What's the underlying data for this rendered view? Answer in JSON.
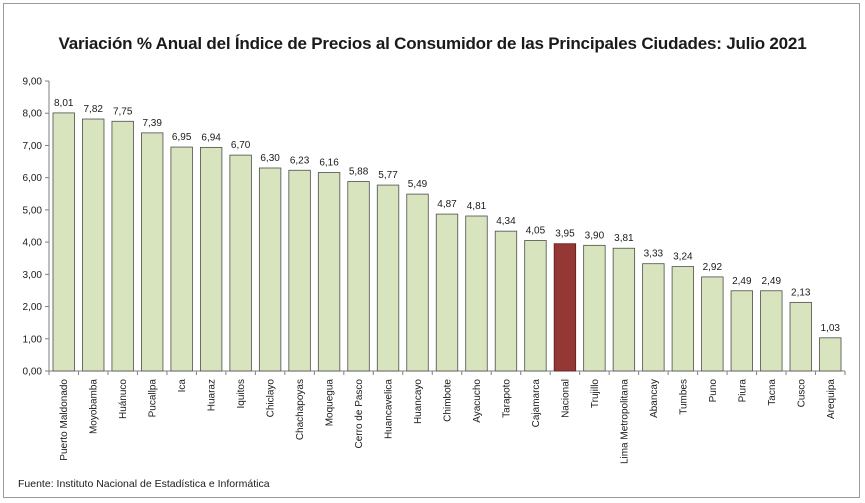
{
  "chart_data": {
    "type": "bar",
    "title": "Variación % Anual del Índice de Precios al Consumidor de las Principales Ciudades: Julio 2021",
    "xlabel": "",
    "ylabel": "",
    "ylim": [
      0,
      9
    ],
    "yticks": [
      "0,00",
      "1,00",
      "2,00",
      "3,00",
      "4,00",
      "5,00",
      "6,00",
      "7,00",
      "8,00",
      "9,00"
    ],
    "grid": false,
    "legend": "none",
    "categories": [
      "Puerto Maldonado",
      "Moyobamba",
      "Huánuco",
      "Pucallpa",
      "Ica",
      "Huaraz",
      "Iquitos",
      "Chiclayo",
      "Chachapoyas",
      "Moquegua",
      "Cerro de Pasco",
      "Huancavelica",
      "Huancayo",
      "Chimbote",
      "Ayacucho",
      "Tarapoto",
      "Cajamarca",
      "Nacional",
      "Trujillo",
      "Lima Metropolitana",
      "Abancay",
      "Tumbes",
      "Puno",
      "Piura",
      "Tacna",
      "Cusco",
      "Arequipa"
    ],
    "values": [
      8.01,
      7.82,
      7.75,
      7.39,
      6.95,
      6.94,
      6.7,
      6.3,
      6.23,
      6.16,
      5.88,
      5.77,
      5.49,
      4.87,
      4.81,
      4.34,
      4.05,
      3.95,
      3.9,
      3.81,
      3.33,
      3.24,
      2.92,
      2.49,
      2.49,
      2.13,
      1.03
    ],
    "value_labels": [
      "8,01",
      "7,82",
      "7,75",
      "7,39",
      "6,95",
      "6,94",
      "6,70",
      "6,30",
      "6,23",
      "6,16",
      "5,88",
      "5,77",
      "5,49",
      "4,87",
      "4,81",
      "4,34",
      "4,05",
      "3,95",
      "3,90",
      "3,81",
      "3,33",
      "3,24",
      "2,92",
      "2,49",
      "2,49",
      "2,13",
      "1,03"
    ],
    "highlight_category": "Nacional",
    "colors": {
      "bar": "#d7e4bd",
      "bar_border": "#4d4d4d",
      "highlight": "#953735",
      "highlight_border": "#5a1e1d",
      "axis": "#7f7f7f",
      "text": "#1a1a1a"
    }
  },
  "source": "Fuente: Instituto Nacional de Estadística e Informática"
}
